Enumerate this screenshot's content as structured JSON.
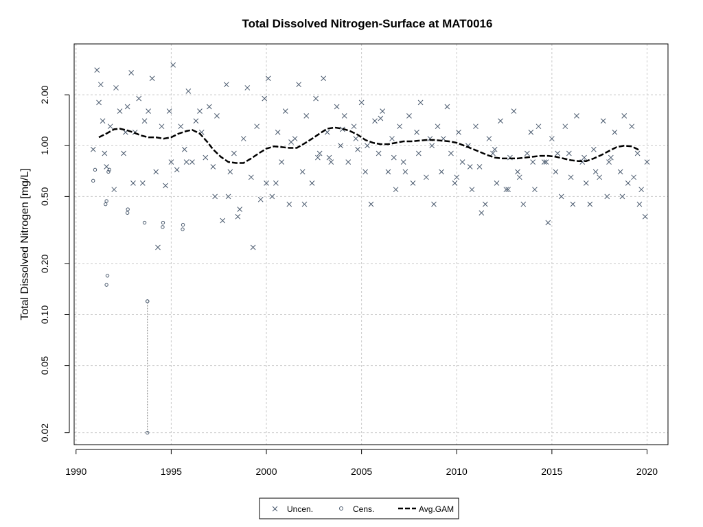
{
  "chart_data": {
    "type": "scatter",
    "title": "Total Dissolved Nitrogen-Surface at MAT0016",
    "xlabel": "",
    "ylabel": "Total Dissolved Nitrogen [mg/L]",
    "x_scale": "linear",
    "y_scale": "log",
    "xlim": [
      1989.9,
      2021.1
    ],
    "ylim": [
      0.017,
      4.0
    ],
    "x_ticks": [
      1990,
      1995,
      2000,
      2005,
      2010,
      2015,
      2020
    ],
    "x_tick_labels": [
      "1990",
      "1995",
      "2000",
      "2005",
      "2010",
      "2015",
      "2020"
    ],
    "y_ticks": [
      0.02,
      0.05,
      0.1,
      0.2,
      0.5,
      1.0,
      2.0
    ],
    "y_tick_labels": [
      "0.02",
      "0.05",
      "0.10",
      "0.20",
      "0.50",
      "1.00",
      "2.00"
    ],
    "grid": true,
    "legend_position": "bottom-center",
    "colors": {
      "points": "#4a5a6e",
      "gam": "#000000",
      "grid": "#c8c8c8"
    },
    "series": [
      {
        "name": "Uncen.",
        "marker": "x",
        "x": [
          1990.9,
          1991.1,
          1991.2,
          1991.3,
          1991.4,
          1991.6,
          1991.8,
          1992.1,
          1992.3,
          1992.5,
          1992.7,
          1992.9,
          1993.1,
          1993.3,
          1993.5,
          1993.8,
          1994.0,
          1994.2,
          1994.5,
          1994.7,
          1994.9,
          1995.1,
          1995.3,
          1995.5,
          1995.7,
          1995.9,
          1996.1,
          1996.3,
          1996.6,
          1996.8,
          1997.0,
          1997.2,
          1997.4,
          1997.7,
          1997.9,
          1998.1,
          1998.3,
          1998.6,
          1998.8,
          1999.0,
          1999.2,
          1999.5,
          1999.7,
          1999.9,
          2000.1,
          2000.3,
          2000.6,
          2000.8,
          2001.0,
          2001.2,
          2001.5,
          2001.7,
          2001.9,
          2002.1,
          2002.4,
          2002.6,
          2002.8,
          2003.0,
          2003.2,
          2003.4,
          2003.7,
          2003.9,
          2004.1,
          2004.3,
          2004.6,
          2004.8,
          2005.0,
          2005.2,
          2005.5,
          2005.7,
          2005.9,
          2006.1,
          2006.4,
          2006.6,
          2006.8,
          2007.0,
          2007.2,
          2007.5,
          2007.7,
          2007.9,
          2008.1,
          2008.4,
          2008.6,
          2008.8,
          2009.0,
          2009.2,
          2009.5,
          2009.7,
          2009.9,
          2010.1,
          2010.3,
          2010.6,
          2010.8,
          2011.0,
          2011.2,
          2011.5,
          2011.7,
          2011.9,
          2012.1,
          2012.3,
          2012.6,
          2012.8,
          2013.0,
          2013.2,
          2013.5,
          2013.7,
          2013.9,
          2014.1,
          2014.3,
          2014.6,
          2014.8,
          2015.0,
          2015.2,
          2015.5,
          2015.7,
          2015.9,
          2016.1,
          2016.3,
          2016.6,
          2016.8,
          2017.0,
          2017.2,
          2017.5,
          2017.7,
          2017.9,
          2018.1,
          2018.3,
          2018.6,
          2018.8,
          2019.0,
          2019.2,
          2019.5,
          2019.7,
          2019.9,
          2020.0,
          1991.5,
          1992.0,
          1992.6,
          1993.0,
          1993.6,
          1994.3,
          1995.0,
          1995.8,
          1996.5,
          1997.3,
          1998.0,
          1998.5,
          1999.3,
          2000.0,
          2000.5,
          2001.3,
          2002.0,
          2002.7,
          2003.3,
          2004.0,
          2004.7,
          2005.3,
          2006.0,
          2006.7,
          2007.3,
          2008.0,
          2008.7,
          2009.3,
          2010.0,
          2010.7,
          2011.3,
          2012.0,
          2012.7,
          2013.3,
          2014.0,
          2014.7,
          2015.3,
          2016.0,
          2016.7,
          2017.3,
          2018.0,
          2018.7,
          2019.3,
          2019.6
        ],
        "y": [
          0.95,
          2.8,
          1.8,
          2.3,
          1.4,
          0.75,
          1.3,
          2.2,
          1.6,
          0.9,
          1.7,
          2.7,
          1.2,
          1.9,
          0.6,
          1.6,
          2.5,
          0.7,
          1.3,
          0.58,
          1.6,
          3.0,
          0.72,
          1.3,
          0.95,
          2.1,
          0.8,
          1.4,
          1.2,
          0.85,
          1.7,
          0.75,
          1.5,
          0.36,
          2.3,
          0.7,
          0.9,
          0.42,
          1.1,
          2.2,
          0.65,
          1.3,
          0.48,
          1.9,
          2.5,
          0.5,
          1.2,
          0.8,
          1.6,
          0.45,
          1.1,
          2.3,
          0.7,
          1.5,
          0.6,
          1.9,
          0.9,
          2.5,
          1.2,
          0.8,
          1.7,
          1.0,
          1.5,
          0.8,
          1.3,
          0.95,
          1.8,
          0.7,
          0.45,
          1.4,
          0.9,
          1.6,
          0.7,
          1.1,
          0.55,
          1.3,
          0.8,
          1.5,
          0.6,
          1.2,
          1.8,
          0.65,
          1.1,
          0.45,
          1.3,
          0.7,
          1.7,
          0.9,
          0.6,
          1.2,
          0.8,
          1.0,
          0.55,
          1.3,
          0.75,
          0.45,
          1.1,
          0.9,
          0.6,
          1.4,
          0.55,
          0.85,
          1.6,
          0.7,
          0.45,
          0.9,
          1.2,
          0.55,
          1.3,
          0.8,
          0.35,
          1.1,
          0.7,
          0.5,
          1.3,
          0.9,
          0.45,
          1.5,
          0.8,
          0.6,
          0.45,
          0.95,
          0.65,
          1.4,
          0.5,
          0.85,
          1.2,
          0.7,
          1.5,
          0.6,
          1.3,
          0.9,
          0.55,
          0.38,
          0.8,
          0.9,
          0.55,
          1.2,
          0.6,
          1.4,
          0.25,
          0.8,
          0.8,
          1.6,
          0.5,
          0.5,
          0.38,
          0.25,
          0.6,
          0.6,
          1.05,
          0.45,
          0.85,
          0.85,
          1.25,
          1.1,
          1.0,
          1.45,
          0.85,
          0.7,
          0.9,
          1.0,
          1.1,
          0.65,
          0.75,
          0.4,
          0.95,
          0.55,
          0.65,
          0.8,
          0.8,
          0.9,
          0.65,
          0.85,
          0.7,
          0.8,
          0.5,
          0.65,
          0.45
        ]
      },
      {
        "name": "Cens.",
        "marker": "circle",
        "x": [
          1990.9,
          1991.0,
          1991.55,
          1991.6,
          1991.7,
          1991.75,
          1992.7,
          1992.72,
          1993.6,
          1993.75,
          1994.55,
          1994.57,
          1995.6,
          1995.62,
          1991.6,
          1991.65
        ],
        "y": [
          0.62,
          0.72,
          0.45,
          0.47,
          0.7,
          0.72,
          0.4,
          0.42,
          0.35,
          0.12,
          0.33,
          0.35,
          0.32,
          0.34,
          0.15,
          0.17
        ]
      }
    ],
    "censored_segment": {
      "x": 1993.75,
      "y": [
        0.02,
        0.12
      ]
    },
    "gam": {
      "name": "Avg.GAM",
      "x": [
        1991.2,
        1991.6,
        1992.0,
        1992.3,
        1992.7,
        1993.0,
        1993.4,
        1993.8,
        1994.2,
        1994.6,
        1995.0,
        1995.4,
        1995.8,
        1996.1,
        1996.5,
        1996.9,
        1997.2,
        1997.6,
        1998.0,
        1998.4,
        1998.8,
        1999.2,
        1999.6,
        2000.0,
        2000.4,
        2000.8,
        2001.2,
        2001.6,
        2002.0,
        2002.4,
        2002.8,
        2003.2,
        2003.6,
        2004.0,
        2004.4,
        2004.8,
        2005.2,
        2005.6,
        2006.0,
        2006.4,
        2006.8,
        2007.2,
        2007.6,
        2008.0,
        2008.4,
        2008.8,
        2009.2,
        2009.6,
        2010.0,
        2010.4,
        2010.8,
        2011.2,
        2011.6,
        2012.0,
        2012.4,
        2012.8,
        2013.2,
        2013.6,
        2014.0,
        2014.4,
        2014.8,
        2015.2,
        2015.6,
        2016.0,
        2016.4,
        2016.8,
        2017.2,
        2017.6,
        2018.0,
        2018.4,
        2018.8,
        2019.2,
        2019.6
      ],
      "y": [
        1.12,
        1.18,
        1.25,
        1.26,
        1.23,
        1.2,
        1.15,
        1.12,
        1.12,
        1.1,
        1.12,
        1.18,
        1.22,
        1.24,
        1.18,
        1.05,
        0.95,
        0.86,
        0.8,
        0.79,
        0.79,
        0.84,
        0.9,
        0.96,
        0.99,
        0.98,
        0.97,
        0.97,
        1.03,
        1.1,
        1.18,
        1.26,
        1.28,
        1.26,
        1.22,
        1.16,
        1.08,
        1.04,
        1.02,
        1.02,
        1.04,
        1.06,
        1.06,
        1.07,
        1.08,
        1.08,
        1.07,
        1.06,
        1.04,
        1.0,
        0.96,
        0.92,
        0.88,
        0.85,
        0.84,
        0.84,
        0.84,
        0.85,
        0.86,
        0.87,
        0.87,
        0.86,
        0.84,
        0.82,
        0.81,
        0.81,
        0.84,
        0.88,
        0.93,
        0.98,
        1.0,
        0.99,
        0.94
      ]
    }
  }
}
